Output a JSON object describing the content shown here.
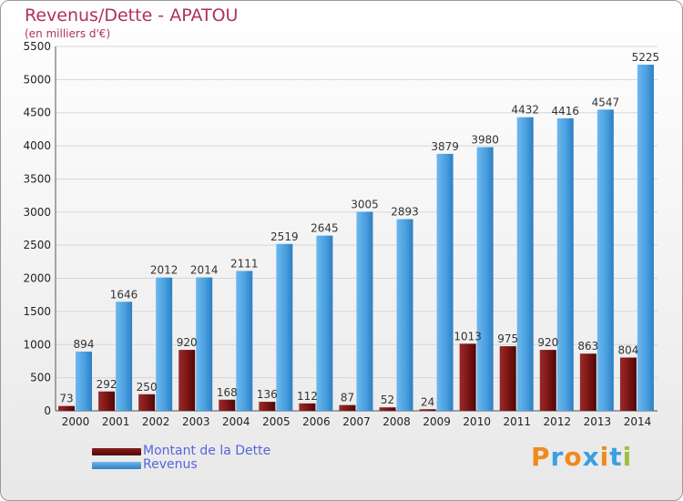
{
  "header": {
    "title": "Revenus/Dette - APATOU",
    "subtitle": "(en milliers d'€)"
  },
  "legend": {
    "items": [
      {
        "label": "Montant de la Dette",
        "color": "#7a1010"
      },
      {
        "label": "Revenus",
        "color": "#4fa3e0"
      }
    ]
  },
  "logo": {
    "text": "Proxiti",
    "letters": [
      {
        "ch": "P",
        "color": "#f08a1c"
      },
      {
        "ch": "r",
        "color": "#3ba0e0"
      },
      {
        "ch": "o",
        "color": "#f08a1c"
      },
      {
        "ch": "x",
        "color": "#3ba0e0"
      },
      {
        "ch": "i",
        "color": "#f08a1c"
      },
      {
        "ch": "t",
        "color": "#3ba0e0"
      },
      {
        "ch": "i",
        "color": "#9ac23c"
      }
    ]
  },
  "chart_data": {
    "type": "bar",
    "title": "Revenus/Dette - APATOU",
    "subtitle": "(en milliers d'€)",
    "categories": [
      "2000",
      "2001",
      "2002",
      "2003",
      "2004",
      "2005",
      "2006",
      "2007",
      "2008",
      "2009",
      "2010",
      "2011",
      "2012",
      "2013",
      "2014"
    ],
    "series": [
      {
        "name": "Montant de la Dette",
        "color": "#7a1010",
        "values": [
          73,
          292,
          250,
          920,
          168,
          136,
          112,
          87,
          52,
          24,
          1013,
          975,
          920,
          863,
          804
        ],
        "labels": [
          "73",
          "292",
          "250",
          "920",
          "168",
          "136",
          "112",
          "87",
          "52",
          "24",
          "1013",
          "975",
          "920",
          "863",
          "804"
        ]
      },
      {
        "name": "Revenus",
        "color": "#4fa3e0",
        "values": [
          894,
          1646,
          2012,
          2014,
          2111,
          2519,
          2645,
          3005,
          2893,
          3879,
          3980,
          4432,
          4416,
          4547,
          5225
        ],
        "labels": [
          "894",
          "1646",
          "2012",
          "2014",
          "2111",
          "2519",
          "2645",
          "3005",
          "2893",
          "3879",
          "3980",
          "4432",
          "4416",
          "4547",
          "5225"
        ]
      }
    ],
    "yticks": [
      0,
      500,
      1000,
      1500,
      2000,
      2500,
      3000,
      3500,
      4000,
      4500,
      5000,
      5500
    ],
    "ylim": [
      0,
      5500
    ],
    "grid": true,
    "legend_position": "bottom-left"
  }
}
